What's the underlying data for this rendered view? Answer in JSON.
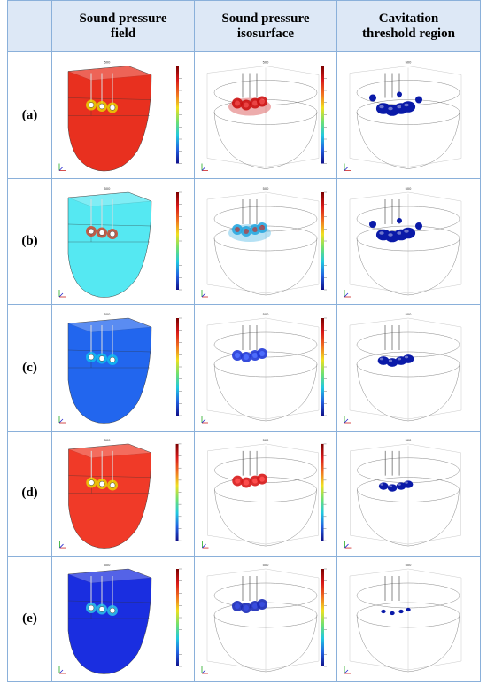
{
  "headers": [
    "Sound pressure\nfield",
    "Sound pressure\nisosurface",
    "Cavitation\nthreshold region"
  ],
  "header_lines": [
    [
      "Sound pressure",
      "field"
    ],
    [
      "Sound pressure",
      "isosurface"
    ],
    [
      "Cavitation",
      "threshold region"
    ]
  ],
  "rows": [
    {
      "label": "(a)",
      "field_color": "#e8301f",
      "ring": "#e8e800",
      "iso_color": "#cc1111",
      "iso_accent": "#ff6666",
      "cav_color": "#0a1aa8",
      "cav_size": "large"
    },
    {
      "label": "(b)",
      "field_color": "#55e8f2",
      "ring": "#e03010",
      "iso_color": "#2aa8e0",
      "iso_accent": "#e02010",
      "cav_color": "#0a1aa8",
      "cav_size": "large"
    },
    {
      "label": "(c)",
      "field_color": "#2266ee",
      "ring": "#10c8f0",
      "iso_color": "#2038d8",
      "iso_accent": "#5070ff",
      "cav_color": "#0a1aa8",
      "cav_size": "medium"
    },
    {
      "label": "(d)",
      "field_color": "#f03a28",
      "ring": "#e8e800",
      "iso_color": "#d81818",
      "iso_accent": "#ff5050",
      "cav_color": "#0a1aa8",
      "cav_size": "small"
    },
    {
      "label": "(e)",
      "field_color": "#1a2ee0",
      "ring": "#30d8e8",
      "iso_color": "#1a2ab8",
      "iso_accent": "#3a4ee0",
      "cav_color": "#0a1aa8",
      "cav_size": "tiny"
    }
  ],
  "colorbar": [
    "#7a0000",
    "#d81818",
    "#f07020",
    "#f0e020",
    "#70e070",
    "#20c8e0",
    "#2060e0",
    "#10108a"
  ],
  "axis_tick": "500"
}
